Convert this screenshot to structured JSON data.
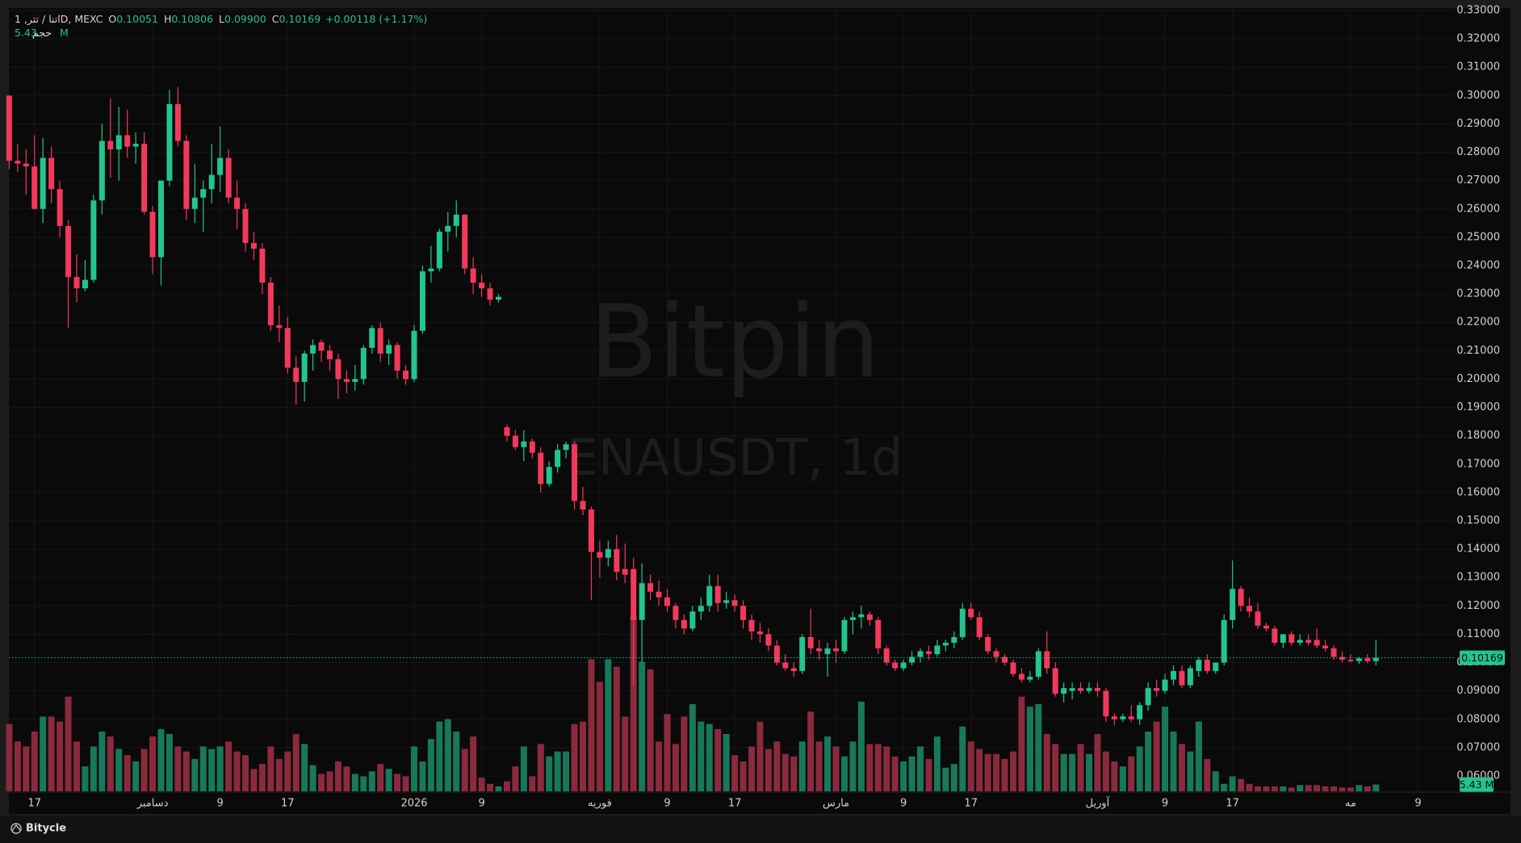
{
  "chart_data": {
    "type": "candlestick",
    "legend": {
      "symbol": "اتنا / تتر, 1D, MEXC",
      "items": [
        {
          "key": "O",
          "value": "0.10051"
        },
        {
          "key": "H",
          "value": "0.10806"
        },
        {
          "key": "L",
          "value": "0.09900"
        },
        {
          "key": "C",
          "value": "0.10169"
        }
      ],
      "change": "+0.00118 (+1.17%)",
      "volume_key": "حجم",
      "volume_value": "5.43 M"
    },
    "watermark": {
      "title": "Bitpin",
      "subtitle": "ENAUSDT, 1d"
    },
    "footer": "Bitycle",
    "last_price_label": "0.10169",
    "last_volume_label": "5.43 M",
    "up_color": "#23c48e",
    "down_color": "#f2395b",
    "volume_up_color": "#18785a",
    "volume_down_color": "#8a2a3c",
    "grid": true,
    "ylim": [
      0.06,
      0.33
    ],
    "yticks": [
      {
        "value": 0.06,
        "label": "0.06000"
      },
      {
        "value": 0.07,
        "label": "0.07000"
      },
      {
        "value": 0.08,
        "label": "0.08000"
      },
      {
        "value": 0.09,
        "label": "0.09000"
      },
      {
        "value": 0.1,
        "label": "0.10000"
      },
      {
        "value": 0.11,
        "label": "0.11000"
      },
      {
        "value": 0.12,
        "label": "0.12000"
      },
      {
        "value": 0.13,
        "label": "0.13000"
      },
      {
        "value": 0.14,
        "label": "0.14000"
      },
      {
        "value": 0.15,
        "label": "0.15000"
      },
      {
        "value": 0.16,
        "label": "0.16000"
      },
      {
        "value": 0.17,
        "label": "0.17000"
      },
      {
        "value": 0.18,
        "label": "0.18000"
      },
      {
        "value": 0.19,
        "label": "0.19000"
      },
      {
        "value": 0.2,
        "label": "0.20000"
      },
      {
        "value": 0.21,
        "label": "0.21000"
      },
      {
        "value": 0.22,
        "label": "0.22000"
      },
      {
        "value": 0.23,
        "label": "0.23000"
      },
      {
        "value": 0.24,
        "label": "0.24000"
      },
      {
        "value": 0.25,
        "label": "0.25000"
      },
      {
        "value": 0.26,
        "label": "0.26000"
      },
      {
        "value": 0.27,
        "label": "0.27000"
      },
      {
        "value": 0.28,
        "label": "0.28000"
      },
      {
        "value": 0.29,
        "label": "0.29000"
      },
      {
        "value": 0.3,
        "label": "0.30000"
      },
      {
        "value": 0.31,
        "label": "0.31000"
      },
      {
        "value": 0.32,
        "label": "0.32000"
      },
      {
        "value": 0.33,
        "label": "0.33000"
      }
    ],
    "xticks": [
      {
        "value": 3,
        "label": "17"
      },
      {
        "value": 17,
        "label": "دسامبر"
      },
      {
        "value": 25,
        "label": "9"
      },
      {
        "value": 33,
        "label": "17"
      },
      {
        "value": 48,
        "label": "2026"
      },
      {
        "value": 56,
        "label": "9"
      },
      {
        "value": 70,
        "label": "فوریه"
      },
      {
        "value": 78,
        "label": "9"
      },
      {
        "value": 86,
        "label": "17"
      },
      {
        "value": 98,
        "label": "مارس"
      },
      {
        "value": 106,
        "label": "9"
      },
      {
        "value": 114,
        "label": "17"
      },
      {
        "value": 129,
        "label": "آوریل"
      },
      {
        "value": 137,
        "label": "9"
      },
      {
        "value": 145,
        "label": "17"
      },
      {
        "value": 159,
        "label": "مه"
      },
      {
        "value": 167,
        "label": "9"
      }
    ],
    "volume_lim": [
      0,
      140
    ],
    "candles": [
      [
        0.3,
        0.3,
        0.274,
        0.277
      ],
      [
        0.277,
        0.283,
        0.273,
        0.276
      ],
      [
        0.276,
        0.281,
        0.265,
        0.275
      ],
      [
        0.275,
        0.286,
        0.262,
        0.26
      ],
      [
        0.26,
        0.285,
        0.255,
        0.278
      ],
      [
        0.278,
        0.282,
        0.262,
        0.267
      ],
      [
        0.267,
        0.27,
        0.25,
        0.254
      ],
      [
        0.254,
        0.256,
        0.218,
        0.236
      ],
      [
        0.236,
        0.244,
        0.227,
        0.232
      ],
      [
        0.232,
        0.242,
        0.231,
        0.235
      ],
      [
        0.235,
        0.265,
        0.234,
        0.263
      ],
      [
        0.263,
        0.29,
        0.258,
        0.284
      ],
      [
        0.284,
        0.299,
        0.271,
        0.281
      ],
      [
        0.281,
        0.296,
        0.27,
        0.286
      ],
      [
        0.286,
        0.295,
        0.278,
        0.282
      ],
      [
        0.282,
        0.287,
        0.276,
        0.283
      ],
      [
        0.283,
        0.287,
        0.258,
        0.259
      ],
      [
        0.259,
        0.261,
        0.237,
        0.243
      ],
      [
        0.243,
        0.27,
        0.233,
        0.27
      ],
      [
        0.27,
        0.302,
        0.268,
        0.297
      ],
      [
        0.297,
        0.303,
        0.282,
        0.284
      ],
      [
        0.284,
        0.286,
        0.256,
        0.26
      ],
      [
        0.26,
        0.276,
        0.255,
        0.264
      ],
      [
        0.264,
        0.27,
        0.252,
        0.267
      ],
      [
        0.267,
        0.283,
        0.262,
        0.272
      ],
      [
        0.272,
        0.289,
        0.266,
        0.278
      ],
      [
        0.278,
        0.281,
        0.262,
        0.264
      ],
      [
        0.264,
        0.27,
        0.253,
        0.26
      ],
      [
        0.26,
        0.262,
        0.245,
        0.248
      ],
      [
        0.248,
        0.252,
        0.242,
        0.246
      ],
      [
        0.246,
        0.248,
        0.23,
        0.234
      ],
      [
        0.234,
        0.236,
        0.217,
        0.219
      ],
      [
        0.219,
        0.226,
        0.213,
        0.218
      ],
      [
        0.218,
        0.222,
        0.202,
        0.204
      ],
      [
        0.204,
        0.208,
        0.191,
        0.199
      ],
      [
        0.199,
        0.21,
        0.192,
        0.209
      ],
      [
        0.209,
        0.214,
        0.203,
        0.212
      ],
      [
        0.213,
        0.214,
        0.206,
        0.21
      ],
      [
        0.21,
        0.212,
        0.203,
        0.207
      ],
      [
        0.207,
        0.209,
        0.193,
        0.2
      ],
      [
        0.2,
        0.203,
        0.195,
        0.199
      ],
      [
        0.199,
        0.205,
        0.196,
        0.2
      ],
      [
        0.2,
        0.212,
        0.198,
        0.211
      ],
      [
        0.211,
        0.219,
        0.209,
        0.218
      ],
      [
        0.218,
        0.22,
        0.206,
        0.209
      ],
      [
        0.209,
        0.214,
        0.205,
        0.212
      ],
      [
        0.212,
        0.213,
        0.2,
        0.203
      ],
      [
        0.203,
        0.205,
        0.198,
        0.2
      ],
      [
        0.2,
        0.219,
        0.199,
        0.217
      ],
      [
        0.217,
        0.24,
        0.216,
        0.238
      ],
      [
        0.238,
        0.247,
        0.234,
        0.239
      ],
      [
        0.239,
        0.253,
        0.238,
        0.252
      ],
      [
        0.252,
        0.259,
        0.245,
        0.254
      ],
      [
        0.254,
        0.263,
        0.25,
        0.258
      ],
      [
        0.258,
        0.258,
        0.237,
        0.239
      ],
      [
        0.239,
        0.243,
        0.23,
        0.234
      ],
      [
        0.234,
        0.237,
        0.229,
        0.232
      ],
      [
        0.232,
        0.234,
        0.226,
        0.228
      ],
      [
        0.228,
        0.23,
        0.227,
        0.229
      ],
      [
        0.183,
        0.184,
        0.178,
        0.18
      ],
      [
        0.18,
        0.182,
        0.175,
        0.176
      ],
      [
        0.176,
        0.182,
        0.171,
        0.178
      ],
      [
        0.178,
        0.179,
        0.172,
        0.174
      ],
      [
        0.174,
        0.176,
        0.16,
        0.163
      ],
      [
        0.163,
        0.171,
        0.162,
        0.169
      ],
      [
        0.169,
        0.177,
        0.167,
        0.175
      ],
      [
        0.175,
        0.178,
        0.172,
        0.177
      ],
      [
        0.177,
        0.178,
        0.154,
        0.157
      ],
      [
        0.157,
        0.162,
        0.152,
        0.154
      ],
      [
        0.154,
        0.155,
        0.122,
        0.139
      ],
      [
        0.139,
        0.143,
        0.13,
        0.137
      ],
      [
        0.137,
        0.143,
        0.134,
        0.14
      ],
      [
        0.14,
        0.145,
        0.129,
        0.132
      ],
      [
        0.133,
        0.142,
        0.128,
        0.131
      ],
      [
        0.133,
        0.137,
        0.092,
        0.115
      ],
      [
        0.115,
        0.135,
        0.1,
        0.128
      ],
      [
        0.128,
        0.131,
        0.122,
        0.125
      ],
      [
        0.125,
        0.129,
        0.12,
        0.123
      ],
      [
        0.123,
        0.126,
        0.118,
        0.12
      ],
      [
        0.12,
        0.121,
        0.112,
        0.115
      ],
      [
        0.115,
        0.117,
        0.11,
        0.112
      ],
      [
        0.112,
        0.12,
        0.111,
        0.118
      ],
      [
        0.118,
        0.123,
        0.115,
        0.12
      ],
      [
        0.12,
        0.131,
        0.118,
        0.127
      ],
      [
        0.127,
        0.131,
        0.118,
        0.121
      ],
      [
        0.121,
        0.125,
        0.119,
        0.122
      ],
      [
        0.122,
        0.124,
        0.118,
        0.12
      ],
      [
        0.12,
        0.122,
        0.112,
        0.115
      ],
      [
        0.115,
        0.117,
        0.108,
        0.111
      ],
      [
        0.111,
        0.114,
        0.107,
        0.11
      ],
      [
        0.11,
        0.112,
        0.104,
        0.106
      ],
      [
        0.106,
        0.108,
        0.099,
        0.1
      ],
      [
        0.1,
        0.103,
        0.097,
        0.098
      ],
      [
        0.098,
        0.1,
        0.095,
        0.097
      ],
      [
        0.097,
        0.11,
        0.096,
        0.109
      ],
      [
        0.109,
        0.119,
        0.103,
        0.105
      ],
      [
        0.105,
        0.108,
        0.101,
        0.104
      ],
      [
        0.103,
        0.107,
        0.095,
        0.105
      ],
      [
        0.105,
        0.108,
        0.1,
        0.104
      ],
      [
        0.104,
        0.116,
        0.103,
        0.115
      ],
      [
        0.115,
        0.118,
        0.11,
        0.116
      ],
      [
        0.116,
        0.12,
        0.112,
        0.117
      ],
      [
        0.117,
        0.118,
        0.113,
        0.115
      ],
      [
        0.115,
        0.116,
        0.103,
        0.105
      ],
      [
        0.105,
        0.106,
        0.099,
        0.1
      ],
      [
        0.1,
        0.101,
        0.097,
        0.098
      ],
      [
        0.098,
        0.101,
        0.097,
        0.1
      ],
      [
        0.1,
        0.104,
        0.099,
        0.102
      ],
      [
        0.102,
        0.105,
        0.1,
        0.104
      ],
      [
        0.104,
        0.106,
        0.101,
        0.103
      ],
      [
        0.103,
        0.108,
        0.102,
        0.106
      ],
      [
        0.106,
        0.108,
        0.104,
        0.107
      ],
      [
        0.107,
        0.111,
        0.105,
        0.109
      ],
      [
        0.109,
        0.121,
        0.108,
        0.119
      ],
      [
        0.119,
        0.121,
        0.115,
        0.116
      ],
      [
        0.116,
        0.118,
        0.108,
        0.109
      ],
      [
        0.109,
        0.11,
        0.103,
        0.104
      ],
      [
        0.104,
        0.105,
        0.1,
        0.102
      ],
      [
        0.102,
        0.103,
        0.099,
        0.1
      ],
      [
        0.1,
        0.101,
        0.095,
        0.096
      ],
      [
        0.096,
        0.098,
        0.093,
        0.094
      ],
      [
        0.094,
        0.097,
        0.093,
        0.095
      ],
      [
        0.095,
        0.105,
        0.094,
        0.104
      ],
      [
        0.104,
        0.111,
        0.096,
        0.098
      ],
      [
        0.098,
        0.1,
        0.088,
        0.089
      ],
      [
        0.089,
        0.093,
        0.086,
        0.091
      ],
      [
        0.09,
        0.093,
        0.087,
        0.091
      ],
      [
        0.091,
        0.093,
        0.089,
        0.09
      ],
      [
        0.09,
        0.093,
        0.089,
        0.091
      ],
      [
        0.091,
        0.093,
        0.088,
        0.09
      ],
      [
        0.09,
        0.091,
        0.079,
        0.081
      ],
      [
        0.081,
        0.082,
        0.078,
        0.08
      ],
      [
        0.08,
        0.082,
        0.079,
        0.081
      ],
      [
        0.081,
        0.085,
        0.079,
        0.08
      ],
      [
        0.08,
        0.086,
        0.078,
        0.085
      ],
      [
        0.085,
        0.093,
        0.083,
        0.091
      ],
      [
        0.091,
        0.094,
        0.088,
        0.09
      ],
      [
        0.09,
        0.096,
        0.089,
        0.094
      ],
      [
        0.094,
        0.099,
        0.092,
        0.097
      ],
      [
        0.097,
        0.099,
        0.091,
        0.092
      ],
      [
        0.092,
        0.099,
        0.091,
        0.098
      ],
      [
        0.097,
        0.102,
        0.095,
        0.101
      ],
      [
        0.101,
        0.103,
        0.096,
        0.097
      ],
      [
        0.097,
        0.1,
        0.096,
        0.1
      ],
      [
        0.1,
        0.117,
        0.099,
        0.115
      ],
      [
        0.115,
        0.136,
        0.112,
        0.126
      ],
      [
        0.126,
        0.127,
        0.118,
        0.12
      ],
      [
        0.12,
        0.123,
        0.116,
        0.118
      ],
      [
        0.118,
        0.121,
        0.112,
        0.113
      ],
      [
        0.113,
        0.114,
        0.111,
        0.112
      ],
      [
        0.112,
        0.113,
        0.106,
        0.107
      ],
      [
        0.107,
        0.11,
        0.105,
        0.11
      ],
      [
        0.11,
        0.111,
        0.106,
        0.107
      ],
      [
        0.107,
        0.11,
        0.106,
        0.108
      ],
      [
        0.108,
        0.11,
        0.106,
        0.107
      ],
      [
        0.108,
        0.112,
        0.105,
        0.106
      ],
      [
        0.106,
        0.108,
        0.104,
        0.105
      ],
      [
        0.105,
        0.106,
        0.101,
        0.102
      ],
      [
        0.102,
        0.104,
        0.1,
        0.101
      ],
      [
        0.101,
        0.103,
        0.1,
        0.1005
      ],
      [
        0.1005,
        0.102,
        0.0995,
        0.1015
      ],
      [
        0.1015,
        0.103,
        0.0998,
        0.1005
      ],
      [
        0.10051,
        0.10806,
        0.099,
        0.10169
      ]
    ],
    "volume": [
      54,
      40,
      36,
      48,
      60,
      60,
      56,
      76,
      40,
      20,
      36,
      48,
      44,
      34,
      29,
      24,
      34,
      44,
      50,
      46,
      36,
      32,
      26,
      36,
      34,
      36,
      40,
      32,
      29,
      18,
      22,
      36,
      26,
      32,
      46,
      38,
      21,
      14,
      16,
      24,
      20,
      14,
      12,
      16,
      22,
      18,
      14,
      12,
      36,
      24,
      42,
      56,
      58,
      48,
      34,
      44,
      11,
      6,
      4,
      8,
      20,
      36,
      12,
      38,
      28,
      32,
      32,
      54,
      56,
      106,
      88,
      106,
      100,
      60,
      140,
      104,
      98,
      40,
      62,
      38,
      60,
      70,
      56,
      54,
      50,
      46,
      29,
      24,
      36,
      56,
      34,
      40,
      30,
      28,
      40,
      64,
      40,
      44,
      36,
      28,
      40,
      72,
      38,
      38,
      36,
      28,
      24,
      28,
      36,
      26,
      44,
      19,
      22,
      52,
      40,
      34,
      30,
      30,
      26,
      32,
      76,
      68,
      70,
      46,
      38,
      30,
      30,
      38,
      30,
      46,
      32,
      24,
      20,
      28,
      36,
      48,
      56,
      68,
      48,
      38,
      32,
      56,
      26,
      16,
      6,
      12,
      10,
      6,
      4,
      4,
      4,
      4,
      3,
      5,
      5,
      5,
      4,
      4,
      3,
      3,
      5,
      4,
      5.43
    ]
  }
}
